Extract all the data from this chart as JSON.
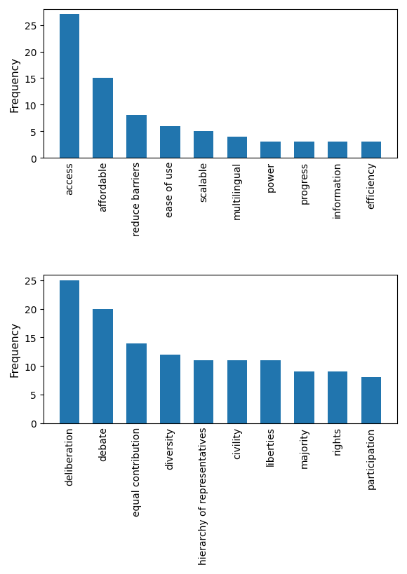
{
  "chart1": {
    "categories": [
      "access",
      "affordable",
      "reduce barriers",
      "ease of use",
      "scalable",
      "multilingual",
      "power",
      "progress",
      "information",
      "efficiency"
    ],
    "values": [
      27,
      15,
      8,
      6,
      5,
      4,
      3,
      3,
      3,
      3
    ],
    "ylabel": "Frequency",
    "ylim": [
      0,
      28
    ],
    "yticks": [
      0,
      5,
      10,
      15,
      20,
      25
    ]
  },
  "chart2": {
    "categories": [
      "deliberation",
      "debate",
      "equal contribution",
      "diversity",
      "hierarchy of representatives",
      "civility",
      "liberties",
      "majority",
      "rights",
      "participation"
    ],
    "values": [
      25,
      20,
      14,
      12,
      11,
      11,
      11,
      9,
      9,
      8
    ],
    "ylabel": "Frequency",
    "ylim": [
      0,
      26
    ],
    "yticks": [
      0,
      5,
      10,
      15,
      20,
      25
    ]
  },
  "bar_color": "#2175ae",
  "figsize": [
    5.8,
    8.2
  ],
  "dpi": 100,
  "tick_labelsize": 10,
  "ylabel_fontsize": 11,
  "label_rotation": 90
}
